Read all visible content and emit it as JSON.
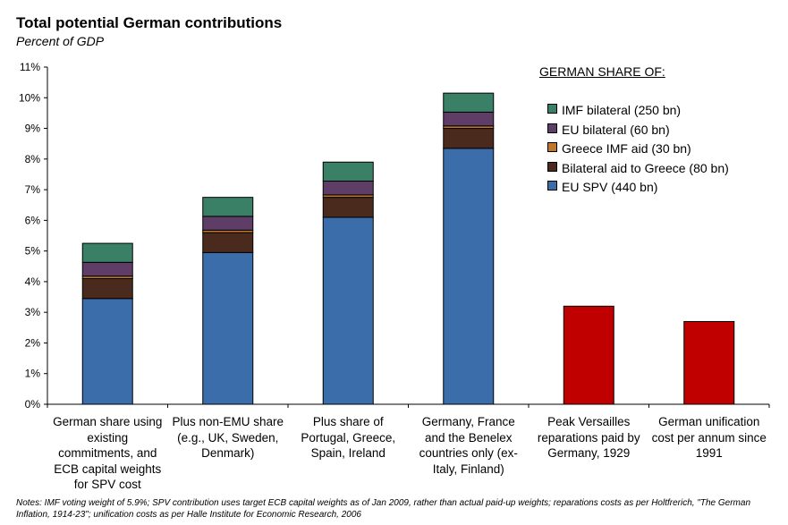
{
  "chart_data": {
    "type": "bar",
    "title": "Total potential German contributions",
    "subtitle": "Percent of GDP",
    "ylim": [
      0,
      11
    ],
    "yticks": [
      "0%",
      "1%",
      "2%",
      "3%",
      "4%",
      "5%",
      "6%",
      "7%",
      "8%",
      "9%",
      "10%",
      "11%"
    ],
    "categories": [
      "German share using\nexisting\ncommitments, and\nECB capital weights\nfor SPV cost",
      "Plus non-EMU share\n(e.g., UK, Sweden,\nDenmark)",
      "Plus share of\nPortugal, Greece,\nSpain, Ireland",
      "Germany, France\nand the Benelex\ncountries only (ex-\nItaly, Finland)",
      "Peak Versailles\nreparations paid by\nGermany, 1929",
      "German unification\ncost per annum since\n1991"
    ],
    "legend_title": "GERMAN SHARE OF:",
    "series": [
      {
        "name": "EU SPV (440 bn)",
        "color": "#3b6dab",
        "values": [
          3.45,
          4.95,
          6.1,
          8.35,
          0,
          0
        ]
      },
      {
        "name": "Bilateral aid to Greece (80 bn)",
        "color": "#4a2a1c",
        "values": [
          0.65,
          0.65,
          0.65,
          0.65,
          0,
          0
        ]
      },
      {
        "name": "Greece IMF aid (30 bn)",
        "color": "#c0762a",
        "values": [
          0.08,
          0.08,
          0.08,
          0.08,
          0,
          0
        ]
      },
      {
        "name": "EU bilateral (60 bn)",
        "color": "#5e3e66",
        "values": [
          0.45,
          0.45,
          0.45,
          0.45,
          0,
          0
        ]
      },
      {
        "name": "IMF bilateral (250 bn)",
        "color": "#3a8066",
        "values": [
          0.62,
          0.62,
          0.62,
          0.62,
          0,
          0
        ]
      }
    ],
    "reference_bars": {
      "color": "#c00000",
      "values": [
        0,
        0,
        0,
        0,
        3.2,
        2.7
      ]
    },
    "legend_order": [
      4,
      3,
      2,
      1,
      0
    ]
  },
  "notes": "Notes: IMF voting weight of 5.9%; SPV contribution uses target ECB capital weights as of Jan 2009, rather than actual paid-up weights; reparations costs as per Holtfrerich, \"The German Inflation, 1914-23\"; unification costs as per Halle Institute for Economic Research, 2006"
}
